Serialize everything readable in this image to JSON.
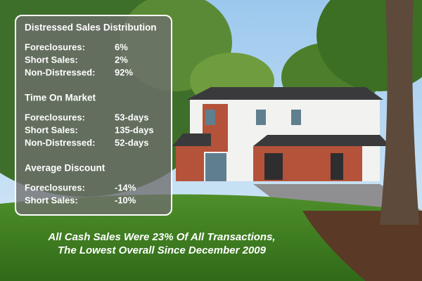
{
  "panel": {
    "sections": [
      {
        "title": "Distressed Sales Distribution",
        "rows": [
          {
            "label": "Foreclosures:",
            "value": "6%"
          },
          {
            "label": "Short Sales:",
            "value": "2%"
          },
          {
            "label": "Non-Distressed:",
            "value": "92%"
          }
        ]
      },
      {
        "title": "Time On Market",
        "rows": [
          {
            "label": "Foreclosures:",
            "value": "53-days"
          },
          {
            "label": "Short Sales:",
            "value": "135-days"
          },
          {
            "label": "Non-Distressed:",
            "value": "52-days"
          }
        ]
      },
      {
        "title": "Average Discount",
        "rows": [
          {
            "label": "Foreclosures:",
            "value": "-14%"
          },
          {
            "label": "Short Sales:",
            "value": "-10%"
          }
        ]
      }
    ]
  },
  "caption": [
    "All Cash Sales Were 23% Of All Transactions,",
    "The Lowest Overall Since December 2009"
  ]
}
